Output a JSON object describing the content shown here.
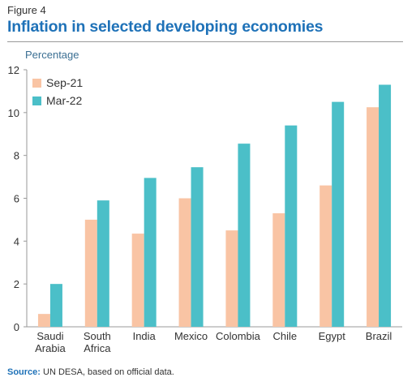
{
  "figure": {
    "label": "Figure 4",
    "title": "Inflation in selected developing economies",
    "source_prefix": "Source:",
    "source_text": " UN DESA, based on official data."
  },
  "chart_data": {
    "type": "bar",
    "title": "Inflation in selected developing economies",
    "xlabel": "",
    "ylabel": "Percentage",
    "ylim": [
      0,
      12
    ],
    "yticks": [
      0,
      2,
      4,
      6,
      8,
      10,
      12
    ],
    "grid": false,
    "legend_position": "top-left",
    "categories": [
      [
        "Saudi",
        "Arabia"
      ],
      [
        "South",
        "Africa"
      ],
      [
        "India"
      ],
      [
        "Mexico"
      ],
      [
        "Colombia"
      ],
      [
        "Chile"
      ],
      [
        "Egypt"
      ],
      [
        "Brazil"
      ]
    ],
    "series": [
      {
        "name": "Sep-21",
        "color": "#f9c4a4",
        "values": [
          0.6,
          5.0,
          4.35,
          6.0,
          4.5,
          5.3,
          6.6,
          10.25
        ]
      },
      {
        "name": "Mar-22",
        "color": "#4bbfc8",
        "values": [
          2.0,
          5.9,
          6.95,
          7.45,
          8.55,
          9.4,
          10.5,
          11.3
        ]
      }
    ]
  }
}
